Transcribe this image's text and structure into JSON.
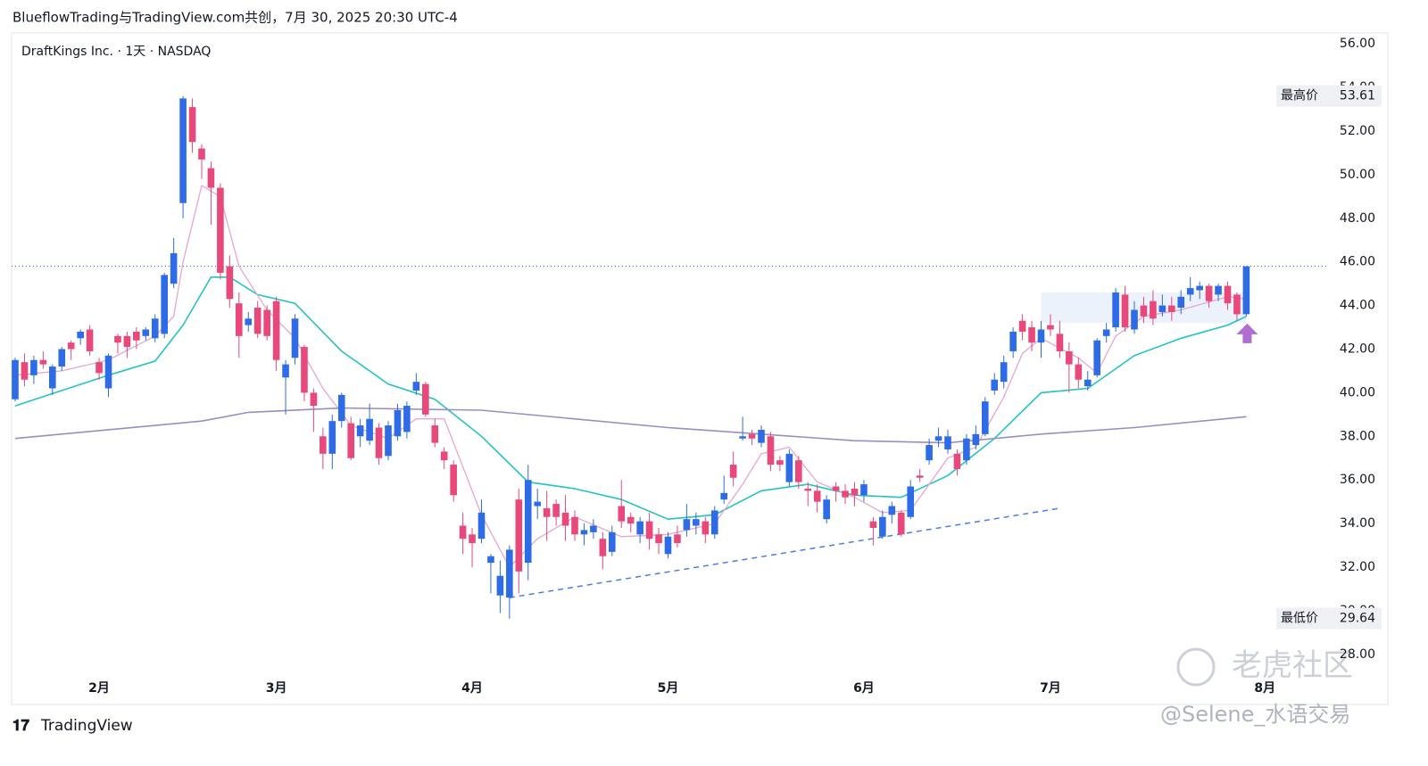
{
  "header": {
    "title": "BlueflowTrading与TradingView.com共创，7月 30, 2025 20:30 UTC-4"
  },
  "chart_data": {
    "type": "candlestick",
    "subtitle": "DraftKings Inc. · 1天 · NASDAQ",
    "categories": [
      null,
      null,
      null,
      null,
      null,
      null,
      null,
      null,
      null,
      "2月",
      null,
      null,
      null,
      null,
      null,
      null,
      null,
      null,
      null,
      null,
      null,
      null,
      null,
      null,
      null,
      null,
      null,
      null,
      "3月",
      null,
      null,
      null,
      null,
      null,
      null,
      null,
      null,
      null,
      null,
      null,
      null,
      null,
      null,
      null,
      null,
      null,
      null,
      null,
      null,
      "4月",
      null,
      null,
      null,
      null,
      null,
      null,
      null,
      null,
      null,
      null,
      null,
      null,
      null,
      null,
      null,
      null,
      null,
      null,
      null,
      null,
      "5月",
      null,
      null,
      null,
      null,
      null,
      null,
      null,
      null,
      null,
      null,
      null,
      null,
      null,
      null,
      null,
      null,
      null,
      null,
      null,
      null,
      "6月",
      null,
      null,
      null,
      null,
      null,
      null,
      null,
      null,
      null,
      null,
      null,
      null,
      null,
      null,
      null,
      null,
      null,
      null,
      null,
      "7月",
      null,
      null,
      null,
      null,
      null,
      null,
      null,
      null,
      null,
      null,
      null,
      null,
      null,
      null,
      null,
      null,
      null,
      null,
      null,
      null,
      null,
      null,
      "8月"
    ],
    "ohlc": [
      [
        39.7,
        41.6,
        39.6,
        41.5
      ],
      [
        41.4,
        41.8,
        40.3,
        40.6
      ],
      [
        40.8,
        41.7,
        40.4,
        41.5
      ],
      [
        41.5,
        41.9,
        41.1,
        41.3
      ],
      [
        40.2,
        41.3,
        39.9,
        41.2
      ],
      [
        41.2,
        42.1,
        41.0,
        42.0
      ],
      [
        42.3,
        42.4,
        41.5,
        42.0
      ],
      [
        42.5,
        42.9,
        42.2,
        42.8
      ],
      [
        42.9,
        43.1,
        41.7,
        41.9
      ],
      [
        41.4,
        41.6,
        40.6,
        40.9
      ],
      [
        40.2,
        41.8,
        39.8,
        41.7
      ],
      [
        42.6,
        42.7,
        41.8,
        42.3
      ],
      [
        42.6,
        42.8,
        41.6,
        42.1
      ],
      [
        42.8,
        43.0,
        42.0,
        42.4
      ],
      [
        42.6,
        43.0,
        42.4,
        42.9
      ],
      [
        42.5,
        43.6,
        42.3,
        43.4
      ],
      [
        42.7,
        45.5,
        42.5,
        45.4
      ],
      [
        45.0,
        47.1,
        44.8,
        46.4
      ],
      [
        48.7,
        53.61,
        48.0,
        53.5
      ],
      [
        53.1,
        53.5,
        51.0,
        51.5
      ],
      [
        51.2,
        51.4,
        49.8,
        50.7
      ],
      [
        50.3,
        50.6,
        47.7,
        49.4
      ],
      [
        49.4,
        49.6,
        45.2,
        45.5
      ],
      [
        45.8,
        46.3,
        43.9,
        44.3
      ],
      [
        44.1,
        44.6,
        41.6,
        42.6
      ],
      [
        43.1,
        43.7,
        42.8,
        43.4
      ],
      [
        43.9,
        44.2,
        42.5,
        42.7
      ],
      [
        43.8,
        44.0,
        42.4,
        42.6
      ],
      [
        44.2,
        44.4,
        41.0,
        41.5
      ],
      [
        40.7,
        41.5,
        39.0,
        41.3
      ],
      [
        41.6,
        43.6,
        41.3,
        43.4
      ],
      [
        42.1,
        42.2,
        39.6,
        40.0
      ],
      [
        40.0,
        40.2,
        38.2,
        39.4
      ],
      [
        38.0,
        38.4,
        36.5,
        37.2
      ],
      [
        37.2,
        39.0,
        36.5,
        38.7
      ],
      [
        38.7,
        40.0,
        38.4,
        39.9
      ],
      [
        38.6,
        38.9,
        36.9,
        37.0
      ],
      [
        38.0,
        38.8,
        37.5,
        38.5
      ],
      [
        37.8,
        39.5,
        37.6,
        38.8
      ],
      [
        38.4,
        38.6,
        36.7,
        37.0
      ],
      [
        37.1,
        38.7,
        36.9,
        38.5
      ],
      [
        38.0,
        39.5,
        37.8,
        39.2
      ],
      [
        38.2,
        39.6,
        37.9,
        39.4
      ],
      [
        40.1,
        40.9,
        39.9,
        40.5
      ],
      [
        40.4,
        40.5,
        38.9,
        39.0
      ],
      [
        38.5,
        38.8,
        37.5,
        37.7
      ],
      [
        37.3,
        37.5,
        36.5,
        36.9
      ],
      [
        36.7,
        36.9,
        35.0,
        35.3
      ],
      [
        33.9,
        34.5,
        32.6,
        33.3
      ],
      [
        33.5,
        33.8,
        32.0,
        33.1
      ],
      [
        33.3,
        35.1,
        33.1,
        34.5
      ],
      [
        32.2,
        32.6,
        30.8,
        32.5
      ],
      [
        30.7,
        32.3,
        29.9,
        31.6
      ],
      [
        30.6,
        33.0,
        29.64,
        32.8
      ],
      [
        35.1,
        35.6,
        30.8,
        31.8
      ],
      [
        32.2,
        36.7,
        31.4,
        36.0
      ],
      [
        34.8,
        35.6,
        34.2,
        35.0
      ],
      [
        34.7,
        35.5,
        33.2,
        34.3
      ],
      [
        34.9,
        35.1,
        33.9,
        34.3
      ],
      [
        34.5,
        35.3,
        33.2,
        33.9
      ],
      [
        34.3,
        34.6,
        33.2,
        33.5
      ],
      [
        33.5,
        34.0,
        33.0,
        33.7
      ],
      [
        33.6,
        34.2,
        33.3,
        33.9
      ],
      [
        33.3,
        33.6,
        31.9,
        32.5
      ],
      [
        32.7,
        33.9,
        32.5,
        33.6
      ],
      [
        34.8,
        36.0,
        33.8,
        34.1
      ],
      [
        34.3,
        34.5,
        33.6,
        34.0
      ],
      [
        33.5,
        34.3,
        33.1,
        34.1
      ],
      [
        34.1,
        34.5,
        32.8,
        33.3
      ],
      [
        33.5,
        33.8,
        32.6,
        33.1
      ],
      [
        32.6,
        33.6,
        32.4,
        33.4
      ],
      [
        33.5,
        33.9,
        32.9,
        33.1
      ],
      [
        33.7,
        34.9,
        33.4,
        34.2
      ],
      [
        33.9,
        34.5,
        33.5,
        34.2
      ],
      [
        34.1,
        34.3,
        33.1,
        33.5
      ],
      [
        33.5,
        34.8,
        33.3,
        34.6
      ],
      [
        35.1,
        36.2,
        34.9,
        35.4
      ],
      [
        36.7,
        37.3,
        35.7,
        36.1
      ],
      [
        37.9,
        38.9,
        37.8,
        38.0
      ],
      [
        38.1,
        38.3,
        37.6,
        37.9
      ],
      [
        37.7,
        38.5,
        37.5,
        38.3
      ],
      [
        38.0,
        38.2,
        36.4,
        36.7
      ],
      [
        36.9,
        37.1,
        36.4,
        36.7
      ],
      [
        35.9,
        37.4,
        35.7,
        37.2
      ],
      [
        36.9,
        37.1,
        35.6,
        35.9
      ],
      [
        35.6,
        35.9,
        34.8,
        35.5
      ],
      [
        35.5,
        35.8,
        34.5,
        35.0
      ],
      [
        34.2,
        35.3,
        34.0,
        35.1
      ],
      [
        35.7,
        35.9,
        35.0,
        35.5
      ],
      [
        35.5,
        35.8,
        34.9,
        35.2
      ],
      [
        35.6,
        35.9,
        34.8,
        35.3
      ],
      [
        35.3,
        36.0,
        35.0,
        35.8
      ],
      [
        34.1,
        34.3,
        33.0,
        33.8
      ],
      [
        33.4,
        34.6,
        33.3,
        34.3
      ],
      [
        34.4,
        35.0,
        34.0,
        34.8
      ],
      [
        34.5,
        34.6,
        33.4,
        33.5
      ],
      [
        34.3,
        36.0,
        34.2,
        35.7
      ],
      [
        36.2,
        36.5,
        35.9,
        36.1
      ],
      [
        36.9,
        37.9,
        36.7,
        37.6
      ],
      [
        37.8,
        38.4,
        37.5,
        38.0
      ],
      [
        37.4,
        38.3,
        37.2,
        38.0
      ],
      [
        37.2,
        37.4,
        36.2,
        36.5
      ],
      [
        36.9,
        38.1,
        36.7,
        37.9
      ],
      [
        37.6,
        38.5,
        37.4,
        38.1
      ],
      [
        38.1,
        39.8,
        38.0,
        39.6
      ],
      [
        40.1,
        40.9,
        39.9,
        40.6
      ],
      [
        40.5,
        41.7,
        40.2,
        41.4
      ],
      [
        41.9,
        43.0,
        41.6,
        42.8
      ],
      [
        43.3,
        43.6,
        42.4,
        42.8
      ],
      [
        43.0,
        43.3,
        41.9,
        42.3
      ],
      [
        42.3,
        43.3,
        41.6,
        42.9
      ],
      [
        43.1,
        43.6,
        42.6,
        42.9
      ],
      [
        42.7,
        43.3,
        41.6,
        41.9
      ],
      [
        41.9,
        42.3,
        40.0,
        41.3
      ],
      [
        41.3,
        41.6,
        40.2,
        40.6
      ],
      [
        40.3,
        41.0,
        40.1,
        40.6
      ],
      [
        40.8,
        42.5,
        40.7,
        42.4
      ],
      [
        42.6,
        43.2,
        42.3,
        42.9
      ],
      [
        43.0,
        44.8,
        42.8,
        44.6
      ],
      [
        44.5,
        44.9,
        42.8,
        43.0
      ],
      [
        42.9,
        44.2,
        42.7,
        43.8
      ],
      [
        44.0,
        44.4,
        43.2,
        43.5
      ],
      [
        44.2,
        44.7,
        43.1,
        43.4
      ],
      [
        43.7,
        44.5,
        43.5,
        44.0
      ],
      [
        44.0,
        44.4,
        43.3,
        43.7
      ],
      [
        43.9,
        44.7,
        43.6,
        44.4
      ],
      [
        44.5,
        45.3,
        44.2,
        44.8
      ],
      [
        44.7,
        45.1,
        44.3,
        44.9
      ],
      [
        44.9,
        45.0,
        43.9,
        44.2
      ],
      [
        44.5,
        45.0,
        44.2,
        44.9
      ],
      [
        44.9,
        45.1,
        43.8,
        44.1
      ],
      [
        44.5,
        44.6,
        43.3,
        43.6
      ],
      [
        43.6,
        45.8,
        43.5,
        45.8
      ],
      null,
      null
    ],
    "up_color": "#2e6be6",
    "down_color": "#e8487a",
    "series": [
      {
        "color": "#22c3c3",
        "x": [
          0,
          10,
          15,
          18,
          21,
          23,
          26,
          30,
          35,
          40,
          45,
          50,
          55,
          60,
          65,
          70,
          75,
          80,
          85,
          90,
          95,
          100,
          105,
          110,
          115,
          120,
          125,
          130,
          132
        ],
        "values": [
          39.4,
          40.8,
          41.45,
          43.1,
          45.3,
          45.3,
          44.5,
          44.1,
          41.9,
          40.4,
          39.7,
          38.0,
          35.9,
          35.6,
          35.1,
          34.2,
          34.4,
          35.5,
          35.8,
          35.3,
          35.2,
          36.2,
          37.9,
          40.0,
          40.2,
          41.7,
          42.5,
          43.1,
          43.5
        ]
      },
      {
        "color": "#e7a6d0",
        "x": [
          0,
          5,
          10,
          15,
          17,
          18,
          20,
          22,
          24,
          27,
          30,
          33,
          36,
          40,
          43,
          46,
          50,
          53,
          56,
          60,
          65,
          70,
          75,
          78,
          80,
          83,
          86,
          90,
          93,
          96,
          100,
          103,
          106,
          108,
          110,
          114,
          116,
          118,
          121,
          125,
          130,
          132
        ],
        "values": [
          40.8,
          41.0,
          41.5,
          42.6,
          43.5,
          46.0,
          49.5,
          49.0,
          45.8,
          43.8,
          42.5,
          40.2,
          38.5,
          37.9,
          38.8,
          38.8,
          34.4,
          32.0,
          33.3,
          34.3,
          33.4,
          33.5,
          34.0,
          35.8,
          37.2,
          37.5,
          35.9,
          35.2,
          34.5,
          34.6,
          37.0,
          37.5,
          39.8,
          41.8,
          42.5,
          41.6,
          40.9,
          42.6,
          43.5,
          43.8,
          44.4,
          44.3
        ]
      },
      {
        "color": "#9b8cc7",
        "x": [
          0,
          20,
          25,
          35,
          50,
          70,
          90,
          100,
          110,
          120,
          132
        ],
        "values": [
          37.9,
          38.7,
          39.1,
          39.3,
          39.2,
          38.4,
          37.8,
          37.7,
          38.1,
          38.4,
          38.9
        ]
      }
    ],
    "ylim": [
      25.7,
      56.5
    ],
    "yticks": [
      {
        "value": 28,
        "label": "28.00"
      },
      {
        "value": 30,
        "label": "30.00"
      },
      {
        "value": 32,
        "label": "32.00"
      },
      {
        "value": 34,
        "label": "34.00"
      },
      {
        "value": 36,
        "label": "36.00"
      },
      {
        "value": 38,
        "label": "38.00"
      },
      {
        "value": 40,
        "label": "40.00"
      },
      {
        "value": 42,
        "label": "42.00"
      },
      {
        "value": 44,
        "label": "44.00"
      },
      {
        "value": 46,
        "label": "46.00"
      },
      {
        "value": 48,
        "label": "48.00"
      },
      {
        "value": 50,
        "label": "50.00"
      },
      {
        "value": 52,
        "label": "52.00"
      },
      {
        "value": 54,
        "label": "54.00"
      },
      {
        "value": 56,
        "label": "56.00"
      }
    ],
    "last_price_line": 45.8,
    "high_label": {
      "label": "最高价",
      "value": 53.61
    },
    "low_label": {
      "label": "最低价",
      "value": 29.64
    },
    "trendline": {
      "x": [
        53,
        112
      ],
      "values": [
        30.6,
        34.7
      ]
    },
    "range_box": {
      "x": [
        110,
        132
      ],
      "values": [
        43.2,
        44.6
      ]
    }
  },
  "footer": {
    "logo": "TradingView",
    "watermark": "老虎社区",
    "author": "@Selene_水语交易"
  }
}
